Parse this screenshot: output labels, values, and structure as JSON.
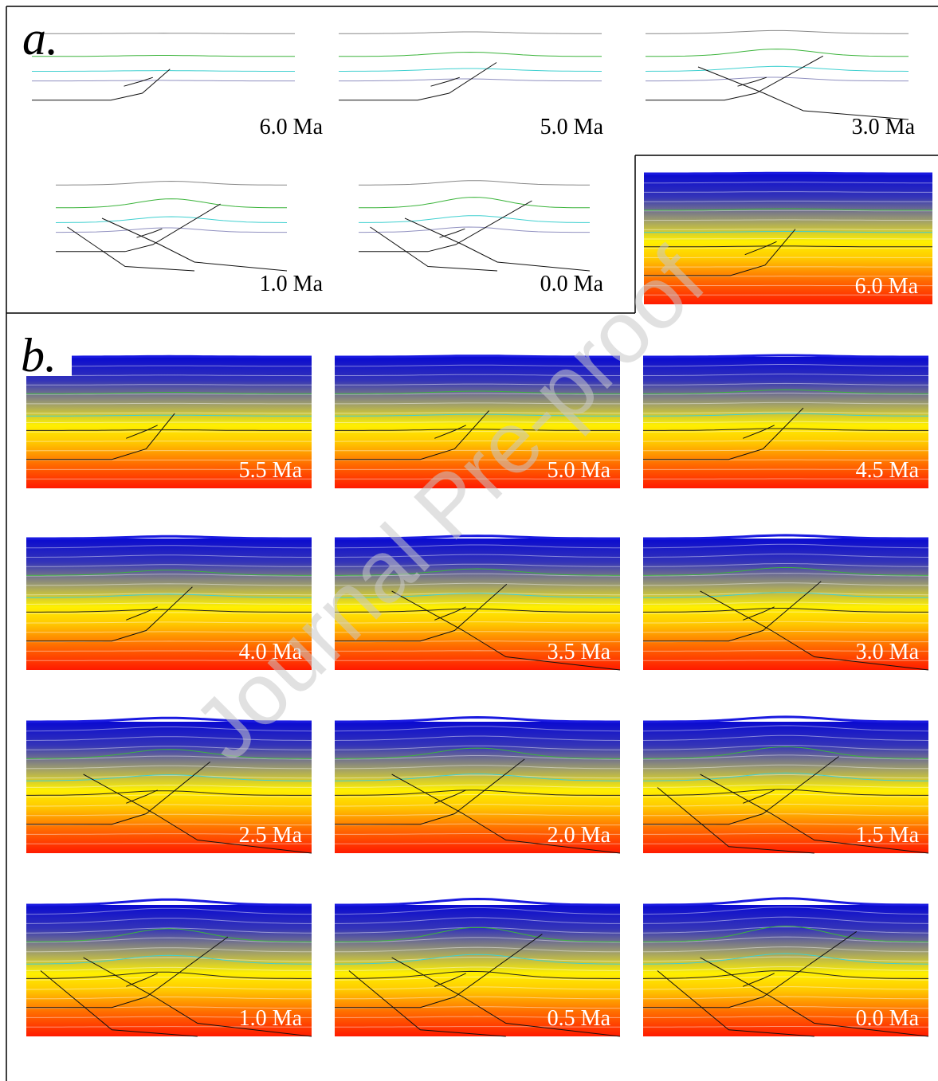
{
  "panel_a": {
    "label": "a.",
    "time_labels": [
      "6.0 Ma",
      "5.0 Ma",
      "3.0 Ma",
      "1.0 Ma",
      "0.0 Ma"
    ],
    "inset_label": "6.0 Ma"
  },
  "panel_b": {
    "label": "b.",
    "time_labels": [
      "5.5 Ma",
      "5.0 Ma",
      "4.5 Ma",
      "4.0 Ma",
      "3.5 Ma",
      "3.0 Ma",
      "2.5 Ma",
      "2.0 Ma",
      "1.5 Ma",
      "1.0 Ma",
      "0.5 Ma",
      "0.0 Ma"
    ]
  },
  "watermark": "Journal Pre-proof"
}
